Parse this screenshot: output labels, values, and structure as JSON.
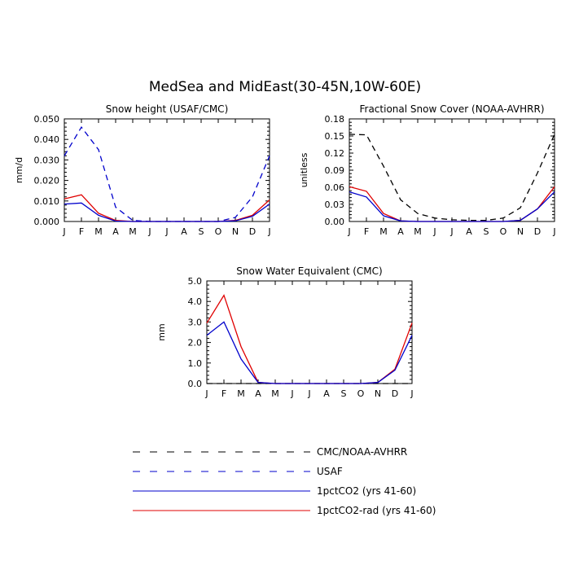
{
  "title": "MedSea and MidEast(30-45N,10W-60E)",
  "months": [
    "J",
    "F",
    "M",
    "A",
    "M",
    "J",
    "J",
    "A",
    "S",
    "O",
    "N",
    "D",
    "J"
  ],
  "colors": {
    "obs_cmc": "#000000",
    "obs_usaf": "#0000cc",
    "pct": "#0000cc",
    "rad": "#e00000"
  },
  "legend": [
    {
      "label": "CMC/NOAA-AVHRR",
      "color": "#000000",
      "dash": true
    },
    {
      "label": "USAF",
      "color": "#0000cc",
      "dash": true
    },
    {
      "label": "1pctCO2 (yrs 41-60)",
      "color": "#0000cc",
      "dash": false
    },
    {
      "label": "1pctCO2-rad (yrs 41-60)",
      "color": "#e00000",
      "dash": false
    }
  ],
  "chart_data": [
    {
      "type": "line",
      "title": "Snow height (USAF/CMC)",
      "ylabel": "mm/d",
      "xlabel": "",
      "ylim": [
        0,
        0.05
      ],
      "yticks": [
        "0.000",
        "0.010",
        "0.020",
        "0.030",
        "0.040",
        "0.050"
      ],
      "ytick_values": [
        0,
        0.01,
        0.02,
        0.03,
        0.04,
        0.05
      ],
      "categories": [
        "J",
        "F",
        "M",
        "A",
        "M",
        "J",
        "J",
        "A",
        "S",
        "O",
        "N",
        "D",
        "J"
      ],
      "series": [
        {
          "key": "obs_usaf",
          "dash": true,
          "values": [
            0.032,
            0.046,
            0.035,
            0.007,
            0.0005,
            0,
            0,
            0,
            0,
            0,
            0.002,
            0.012,
            0.032
          ]
        },
        {
          "key": "rad",
          "dash": false,
          "values": [
            0.011,
            0.013,
            0.004,
            0.0005,
            0,
            0,
            0,
            0,
            0,
            0,
            0.0005,
            0.003,
            0.0105
          ]
        },
        {
          "key": "pct",
          "dash": false,
          "values": [
            0.0085,
            0.009,
            0.003,
            0.0002,
            0,
            0,
            0,
            0,
            0,
            0,
            0.0003,
            0.0025,
            0.0085
          ]
        }
      ]
    },
    {
      "type": "line",
      "title": "Fractional Snow Cover (NOAA-AVHRR)",
      "ylabel": "unitless",
      "xlabel": "",
      "ylim": [
        0,
        0.18
      ],
      "yticks": [
        "0.00",
        "0.03",
        "0.06",
        "0.09",
        "0.12",
        "0.15",
        "0.18"
      ],
      "ytick_values": [
        0,
        0.03,
        0.06,
        0.09,
        0.12,
        0.15,
        0.18
      ],
      "categories": [
        "J",
        "F",
        "M",
        "A",
        "M",
        "J",
        "J",
        "A",
        "S",
        "O",
        "N",
        "D",
        "J"
      ],
      "series": [
        {
          "key": "obs_cmc",
          "dash": true,
          "values": [
            0.153,
            0.152,
            0.097,
            0.038,
            0.014,
            0.006,
            0.003,
            0.002,
            0.002,
            0.006,
            0.024,
            0.085,
            0.153
          ]
        },
        {
          "key": "rad",
          "dash": false,
          "values": [
            0.061,
            0.053,
            0.014,
            0.001,
            0,
            0,
            0,
            0,
            0,
            0,
            0.002,
            0.022,
            0.061
          ]
        },
        {
          "key": "pct",
          "dash": false,
          "values": [
            0.052,
            0.043,
            0.01,
            0.001,
            0,
            0,
            0,
            0,
            0,
            0,
            0.002,
            0.022,
            0.052
          ]
        }
      ]
    },
    {
      "type": "line",
      "title": "Snow Water Equivalent (CMC)",
      "ylabel": "mm",
      "xlabel": "",
      "ylim": [
        0,
        5
      ],
      "yticks": [
        "0.0",
        "1.0",
        "2.0",
        "3.0",
        "4.0",
        "5.0"
      ],
      "ytick_values": [
        0,
        1,
        2,
        3,
        4,
        5
      ],
      "categories": [
        "J",
        "F",
        "M",
        "A",
        "M",
        "J",
        "J",
        "A",
        "S",
        "O",
        "N",
        "D",
        "J"
      ],
      "series": [
        {
          "key": "obs_cmc",
          "dash": true,
          "values": [
            0,
            0,
            0,
            0,
            0,
            0,
            0,
            0,
            0,
            0,
            0,
            0,
            0
          ]
        },
        {
          "key": "rad",
          "dash": false,
          "values": [
            2.95,
            4.3,
            1.8,
            0.05,
            0,
            0,
            0,
            0,
            0,
            0,
            0.05,
            0.7,
            2.95
          ]
        },
        {
          "key": "pct",
          "dash": false,
          "values": [
            2.35,
            3.0,
            1.2,
            0.05,
            0,
            0,
            0,
            0,
            0,
            0,
            0.05,
            0.65,
            2.35
          ]
        }
      ]
    }
  ]
}
